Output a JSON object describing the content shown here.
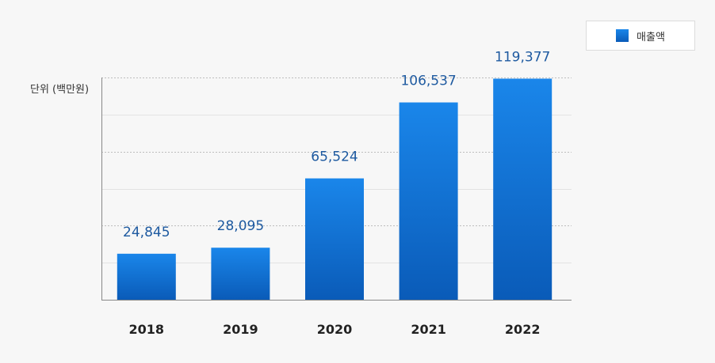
{
  "chart_data": {
    "type": "bar",
    "categories": [
      "2018",
      "2019",
      "2020",
      "2021",
      "2022"
    ],
    "series": [
      {
        "name": "매출액",
        "values": [
          24845,
          28095,
          65524,
          106537,
          119377
        ]
      }
    ],
    "data_labels": [
      "24,845",
      "28,095",
      "65,524",
      "106,537",
      "119,377"
    ],
    "ylabel": "단위 (백만원)",
    "ylim": [
      0,
      120000
    ],
    "grid": true,
    "legend_position": "top-right",
    "colors": {
      "bar_top": "#1a86ea",
      "bar_bottom": "#0a5bb8",
      "label": "#1e5aa0"
    }
  }
}
